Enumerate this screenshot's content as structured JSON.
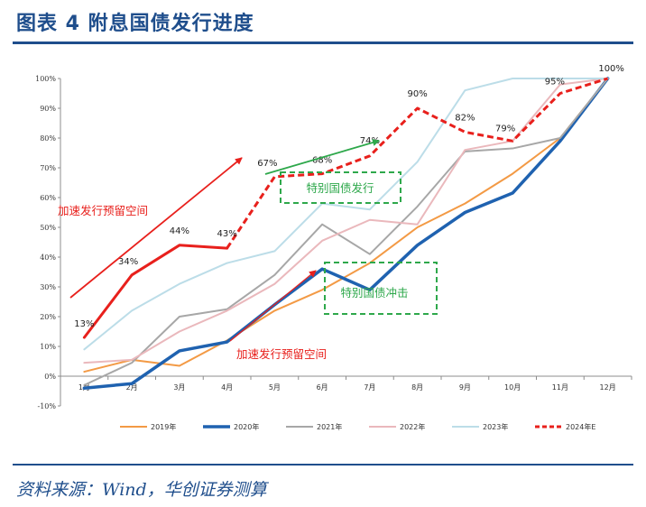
{
  "figure": {
    "title": "图表 4    附息国债发行进度",
    "source": "资料来源：Wind，华创证券测算"
  },
  "chart_data": {
    "type": "line",
    "categories": [
      "1月",
      "2月",
      "3月",
      "4月",
      "5月",
      "6月",
      "7月",
      "8月",
      "9月",
      "10月",
      "11月",
      "12月"
    ],
    "y_ticks": [
      "-10%",
      "0%",
      "10%",
      "20%",
      "30%",
      "40%",
      "50%",
      "60%",
      "70%",
      "80%",
      "90%",
      "100%"
    ],
    "ylim": [
      -10,
      100
    ],
    "grid": false,
    "legend_position": "bottom",
    "series": [
      {
        "name": "2019年",
        "color": "#f39a45",
        "width": 2,
        "dash": false,
        "values": [
          1.5,
          5.5,
          3.5,
          12,
          22,
          29,
          38,
          50,
          58,
          68,
          80,
          100
        ]
      },
      {
        "name": "2020年",
        "color": "#1f62b0",
        "width": 3.5,
        "dash": false,
        "values": [
          -4,
          -2.5,
          8.5,
          11.5,
          24,
          36,
          29,
          44,
          55,
          61.5,
          79,
          100
        ]
      },
      {
        "name": "2021年",
        "color": "#a7a7a7",
        "width": 2,
        "dash": false,
        "values": [
          -3,
          4.5,
          20,
          22.5,
          34,
          51,
          41,
          57,
          75.5,
          76.5,
          80,
          100
        ]
      },
      {
        "name": "2022年",
        "color": "#eab8bc",
        "width": 2,
        "dash": false,
        "values": [
          4.5,
          5.5,
          15,
          22,
          31,
          45.5,
          52.5,
          51,
          76,
          79,
          98,
          100
        ]
      },
      {
        "name": "2023年",
        "color": "#bcdde8",
        "width": 2,
        "dash": false,
        "values": [
          9,
          22,
          31,
          38,
          42,
          58,
          56,
          72,
          96,
          100,
          100,
          100
        ]
      },
      {
        "name": "2024年E",
        "color": "#e8201c",
        "width": 3,
        "dash": true,
        "dash_start": 4,
        "values": [
          13,
          34,
          44,
          43,
          67,
          68,
          74,
          90,
          82,
          79,
          95,
          100
        ]
      }
    ],
    "point_labels": [
      {
        "i": 0,
        "text": "13%"
      },
      {
        "i": 1,
        "text": "34%"
      },
      {
        "i": 2,
        "text": "44%"
      },
      {
        "i": 3,
        "text": "43%"
      },
      {
        "i": 4,
        "text": "67%"
      },
      {
        "i": 5,
        "text": "68%"
      },
      {
        "i": 6,
        "text": "74%"
      },
      {
        "i": 7,
        "text": "90%"
      },
      {
        "i": 8,
        "text": "82%"
      },
      {
        "i": 9,
        "text": "79%"
      },
      {
        "i": 10,
        "text": "95%"
      },
      {
        "i": 11,
        "text": "100%"
      }
    ],
    "annotations": [
      {
        "id": "accel-1",
        "text": "加速发行预留空间",
        "color": "#e8201c"
      },
      {
        "id": "special-issue",
        "text": "特别国债发行",
        "color": "#2ea84b"
      },
      {
        "id": "special-offset",
        "text": "特别国债冲击",
        "color": "#2ea84b"
      },
      {
        "id": "accel-2",
        "text": "加速发行预留空间",
        "color": "#e8201c"
      }
    ]
  }
}
